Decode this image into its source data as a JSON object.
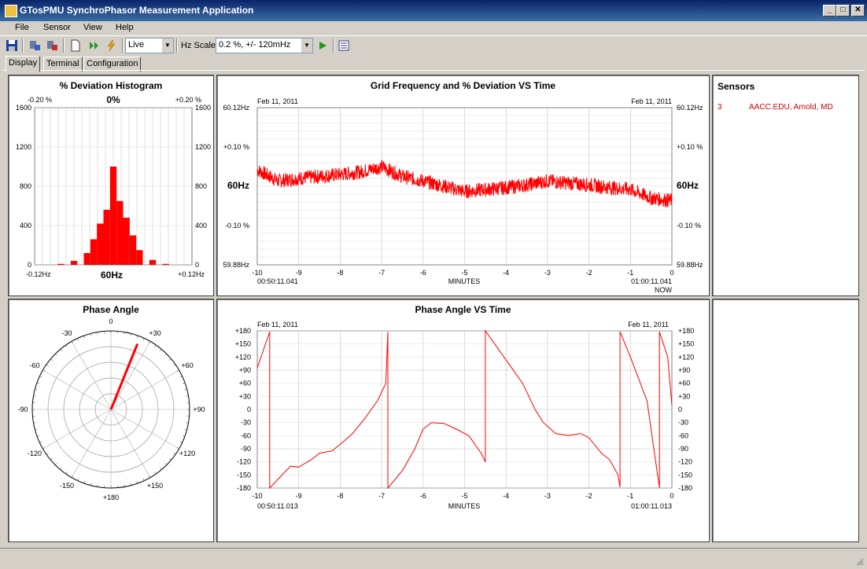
{
  "window": {
    "title": "GTosPMU SynchroPhasor Measurement Application",
    "minimize": "_",
    "maximize": "□",
    "close": "✕"
  },
  "menu": {
    "file": "File",
    "sensor": "Sensor",
    "view": "View",
    "help": "Help"
  },
  "toolbar": {
    "mode_value": "Live",
    "hz_scale_label": "Hz Scale",
    "hz_scale_value": "0.2 %, +/- 120mHz",
    "icons": [
      "save-icon",
      "sensor-connect-icon",
      "sensor-disconnect-icon",
      "new-document-icon",
      "forward-icon",
      "flash-icon",
      "play-icon",
      "list-icon"
    ]
  },
  "tabs": {
    "display": "Display",
    "terminal": "Terminal",
    "configuration": "Configuration"
  },
  "histogram": {
    "title": "% Deviation Histogram",
    "top_left": "-0.20 %",
    "top_center": "0%",
    "top_right": "+0.20 %",
    "yticks": [
      "1600",
      "1200",
      "800",
      "400",
      "0"
    ],
    "bottom_left": "-0.12Hz",
    "bottom_center": "60Hz",
    "bottom_right": "+0.12Hz"
  },
  "freq_chart": {
    "title": "Grid Frequency and % Deviation VS Time",
    "date_left": "Feb 11, 2011",
    "date_right": "Feb 11, 2011",
    "left_ticks": [
      "60.12Hz",
      "+0.10 %",
      "60Hz",
      "-0.10 %",
      "59.88Hz"
    ],
    "right_ticks": [
      "60.12Hz",
      "+0.10 %",
      "60Hz",
      "-0.10 %",
      "59.88Hz"
    ],
    "xticks": [
      "-10",
      "-9",
      "-8",
      "-7",
      "-6",
      "-5",
      "-4",
      "-3",
      "-2",
      "-1",
      "0"
    ],
    "time_left": "00:50:11.041",
    "xlabel": "MINUTES",
    "time_right": "01:00:11.041",
    "now_label": "NOW"
  },
  "phase_polar": {
    "title": "Phase Angle",
    "labels": {
      "top": "0",
      "tr30": "+30",
      "tr60": "+60",
      "right": "+90",
      "br120": "+120",
      "br150": "+150",
      "bottom": "+180",
      "bl150": "-150",
      "bl120": "-120",
      "left": "-90",
      "tl60": "-60",
      "tl30": "-30"
    },
    "angle_deg": 22
  },
  "phase_chart": {
    "title": "Phase Angle VS Time",
    "date_left": "Feb 11, 2011",
    "date_right": "Feb 11, 2011",
    "yticks": [
      "+180",
      "+150",
      "+120",
      "+90",
      "+60",
      "+30",
      "0",
      "-30",
      "-60",
      "-90",
      "-120",
      "-150",
      "-180"
    ],
    "xticks": [
      "-10",
      "-9",
      "-8",
      "-7",
      "-6",
      "-5",
      "-4",
      "-3",
      "-2",
      "-1",
      "0"
    ],
    "time_left": "00:50:11.013",
    "xlabel": "MINUTES",
    "time_right": "01:00:11.013"
  },
  "sensors": {
    "title": "Sensors",
    "items": [
      {
        "id": "3",
        "name": "AACC.EDU, Arnold, MD"
      }
    ]
  },
  "colors": {
    "trace": "#ff0000",
    "sensor_text": "#cc0000",
    "grid": "#c0c0c0"
  },
  "chart_data": [
    {
      "type": "bar",
      "title": "% Deviation Histogram",
      "xlabel": "60Hz",
      "ylim": [
        0,
        1600
      ],
      "x": [
        -0.08,
        -0.06,
        -0.04,
        -0.03,
        -0.02,
        -0.01,
        0.0,
        0.01,
        0.02,
        0.03,
        0.04,
        0.06,
        0.08
      ],
      "values": [
        10,
        40,
        120,
        260,
        420,
        560,
        1000,
        650,
        480,
        300,
        150,
        50,
        10
      ]
    },
    {
      "type": "line",
      "title": "Grid Frequency and % Deviation VS Time",
      "xlabel": "MINUTES",
      "xlim": [
        -10,
        0
      ],
      "ylim": [
        59.88,
        60.12
      ],
      "x": [
        -10,
        -9.5,
        -9,
        -8.5,
        -8,
        -7.5,
        -7,
        -6.5,
        -6,
        -5.5,
        -5,
        -4.5,
        -4,
        -3.5,
        -3,
        -2.5,
        -2,
        -1.5,
        -1,
        -0.5,
        0
      ],
      "values": [
        60.025,
        60.008,
        60.012,
        60.015,
        60.018,
        60.022,
        60.03,
        60.015,
        60.008,
        60.0,
        59.992,
        59.995,
        59.998,
        60.002,
        60.008,
        60.005,
        60.002,
        59.998,
        59.995,
        59.982,
        59.978
      ]
    },
    {
      "type": "line",
      "title": "Phase Angle VS Time",
      "xlabel": "MINUTES",
      "xlim": [
        -10,
        0
      ],
      "ylim": [
        -180,
        180
      ],
      "x": [
        -10,
        -9.7,
        -9.7,
        -9.5,
        -9.2,
        -9,
        -8.7,
        -8.5,
        -8.2,
        -8,
        -7.7,
        -7.4,
        -7.1,
        -6.9,
        -6.85,
        -6.85,
        -6.5,
        -6.2,
        -6,
        -5.8,
        -5.5,
        -5.2,
        -4.9,
        -4.6,
        -4.5,
        -4.5,
        -4.2,
        -3.9,
        -3.6,
        -3.3,
        -3.1,
        -2.8,
        -2.5,
        -2.2,
        -2,
        -1.7,
        -1.5,
        -1.3,
        -1.25,
        -1.25,
        -1.0,
        -0.6,
        -0.3,
        -0.3,
        -0.1,
        0
      ],
      "values": [
        95,
        178,
        -180,
        -160,
        -130,
        -132,
        -115,
        -100,
        -95,
        -80,
        -55,
        -20,
        20,
        60,
        178,
        -180,
        -140,
        -90,
        -45,
        -30,
        -32,
        -45,
        -60,
        -100,
        -120,
        180,
        140,
        100,
        60,
        0,
        -30,
        -55,
        -60,
        -55,
        -65,
        -100,
        -115,
        -150,
        -178,
        178,
        120,
        20,
        -180,
        178,
        120,
        10
      ]
    }
  ]
}
